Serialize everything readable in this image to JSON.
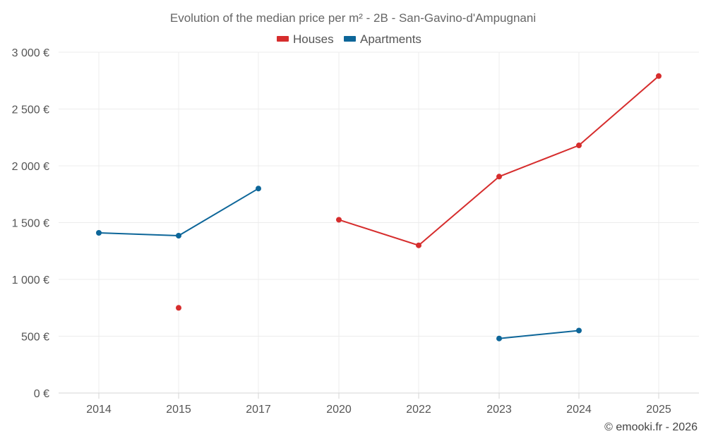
{
  "chart_data": {
    "type": "line",
    "title": "Evolution of the median price per m² - 2B - San-Gavino-d'Ampugnani",
    "categories": [
      "2014",
      "2015",
      "2017",
      "2020",
      "2022",
      "2023",
      "2024",
      "2025"
    ],
    "y_ticks": [
      "0 €",
      "500 €",
      "1 000 €",
      "1 500 €",
      "2 000 €",
      "2 500 €",
      "3 000 €"
    ],
    "y_tick_values": [
      0,
      500,
      1000,
      1500,
      2000,
      2500,
      3000
    ],
    "ylim": [
      0,
      3000
    ],
    "grid": true,
    "legend_position": "top-center",
    "series": [
      {
        "name": "Houses",
        "color": "#d62d2d",
        "values": [
          null,
          750,
          null,
          1525,
          1300,
          1905,
          2180,
          2790
        ]
      },
      {
        "name": "Apartments",
        "color": "#0d6699",
        "values": [
          1410,
          1385,
          1800,
          null,
          null,
          480,
          550,
          null
        ]
      }
    ]
  },
  "credit": "© emooki.fr - 2026"
}
